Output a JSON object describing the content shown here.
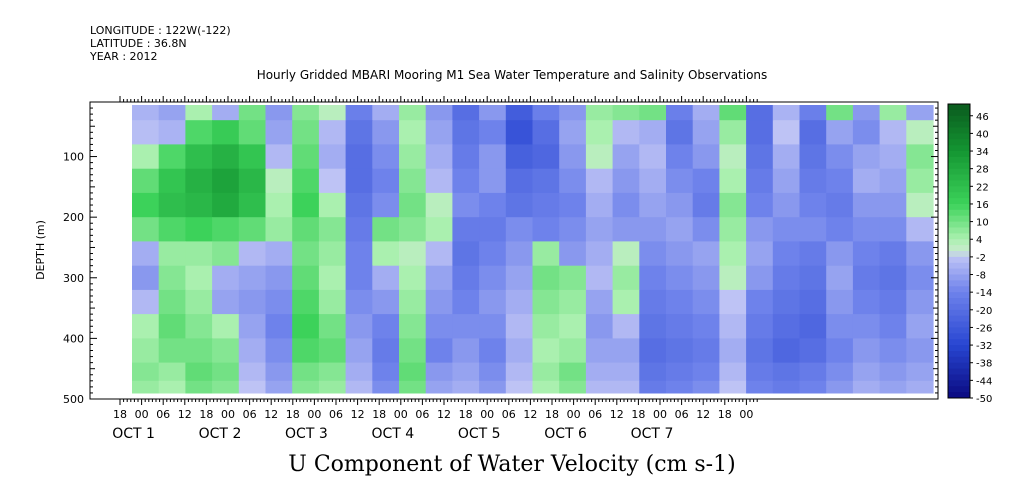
{
  "header": {
    "longitude": "LONGITUDE : 122W(-122)",
    "latitude": "LATITUDE : 36.8N",
    "year": "YEAR : 2012"
  },
  "chart_data": {
    "type": "heatmap",
    "title": "Hourly Gridded MBARI Mooring M1 Sea Water Temperature and Salinity Observations",
    "xlabel": "U Component of Water Velocity (cm s-1)",
    "ylabel": "DEPTH (m)",
    "ylim": [
      500,
      10
    ],
    "yticks": [
      100,
      200,
      300,
      400,
      500
    ],
    "x_hour_ticks": [
      "18",
      "00",
      "06",
      "12",
      "18",
      "00",
      "06",
      "12",
      "18",
      "00",
      "06",
      "12",
      "18",
      "00",
      "06",
      "12",
      "18",
      "00",
      "06",
      "12",
      "18",
      "00",
      "06",
      "12",
      "18",
      "00",
      "06",
      "12",
      "18",
      "00"
    ],
    "day_labels": [
      "OCT 1",
      "OCT 2",
      "OCT 3",
      "OCT 4",
      "OCT 5",
      "OCT 6",
      "OCT 7"
    ],
    "colorbar_ticks": [
      46,
      40,
      34,
      28,
      22,
      16,
      10,
      4,
      -2,
      -8,
      -14,
      -20,
      -26,
      -32,
      -38,
      -44,
      -50
    ],
    "colorbar_range": [
      -50,
      50
    ],
    "colors": {
      "strong_positive": "#0b6a1e",
      "positive": "#33cc55",
      "weak_positive": "#aef0b4",
      "weak_negative": "#b9bff5",
      "negative": "#6f82ea",
      "strong_negative": "#0a0a80"
    },
    "time_hours": [
      0,
      6,
      12,
      18,
      24,
      30,
      36,
      42,
      48,
      54,
      60,
      66,
      72,
      78,
      84,
      90,
      96,
      102,
      108,
      114,
      120,
      126,
      132,
      138,
      144,
      150,
      156,
      162,
      168,
      174
    ],
    "depths_m": [
      20,
      60,
      100,
      140,
      180,
      220,
      260,
      300,
      340,
      380,
      420,
      460,
      480
    ],
    "u_cm_s": [
      [
        -5,
        -8,
        4,
        -6,
        10,
        -10,
        8,
        2,
        -15,
        -6,
        6,
        -10,
        -20,
        -10,
        -25,
        -15,
        -10,
        6,
        8,
        10,
        -15,
        -6,
        12,
        -20,
        -5,
        -15,
        10,
        -10,
        6,
        -8
      ],
      [
        -3,
        -5,
        14,
        18,
        12,
        -8,
        10,
        -4,
        -18,
        -10,
        4,
        -8,
        -18,
        -14,
        -28,
        -20,
        -8,
        4,
        -4,
        -6,
        -18,
        -8,
        6,
        -20,
        -2,
        -20,
        -8,
        -12,
        -4,
        2
      ],
      [
        4,
        14,
        22,
        26,
        20,
        -4,
        12,
        -6,
        -20,
        -12,
        6,
        -6,
        -16,
        -10,
        -24,
        -22,
        -10,
        2,
        -8,
        -4,
        -14,
        -10,
        2,
        -18,
        -6,
        -18,
        -12,
        -8,
        -6,
        8
      ],
      [
        12,
        20,
        26,
        30,
        24,
        2,
        14,
        -2,
        -20,
        -14,
        8,
        -4,
        -14,
        -10,
        -20,
        -18,
        -12,
        -4,
        -10,
        -6,
        -12,
        -14,
        4,
        -16,
        -8,
        -16,
        -14,
        -6,
        -8,
        6
      ],
      [
        16,
        22,
        24,
        28,
        22,
        4,
        16,
        4,
        -18,
        -12,
        10,
        2,
        -12,
        -14,
        -18,
        -16,
        -14,
        -6,
        -12,
        -8,
        -10,
        -16,
        8,
        -14,
        -10,
        -14,
        -16,
        -10,
        -10,
        2
      ],
      [
        10,
        14,
        16,
        14,
        12,
        6,
        12,
        8,
        -16,
        10,
        8,
        4,
        -16,
        -16,
        -12,
        -14,
        -12,
        -8,
        -10,
        -10,
        -8,
        -12,
        6,
        -10,
        -12,
        -12,
        -14,
        -12,
        -12,
        -4
      ],
      [
        -6,
        6,
        6,
        8,
        -4,
        -6,
        10,
        6,
        -14,
        4,
        2,
        -4,
        -18,
        -14,
        -10,
        6,
        -10,
        -6,
        2,
        -12,
        -10,
        -8,
        4,
        -8,
        -14,
        -16,
        -10,
        -14,
        -16,
        -10
      ],
      [
        -10,
        8,
        4,
        -6,
        -8,
        -10,
        12,
        4,
        -14,
        -6,
        4,
        -8,
        -16,
        -12,
        -8,
        10,
        8,
        -4,
        6,
        -14,
        -12,
        -10,
        2,
        -10,
        -16,
        -18,
        -8,
        -16,
        -18,
        -12
      ],
      [
        -4,
        10,
        6,
        -8,
        -10,
        -12,
        14,
        6,
        -12,
        -10,
        6,
        -10,
        -14,
        -10,
        -6,
        8,
        6,
        -8,
        4,
        -16,
        -14,
        -12,
        -2,
        -14,
        -18,
        -20,
        -10,
        -14,
        -16,
        -10
      ],
      [
        4,
        12,
        8,
        4,
        -8,
        -14,
        16,
        10,
        -10,
        -14,
        8,
        -12,
        -12,
        -12,
        -4,
        6,
        4,
        -10,
        -4,
        -18,
        -16,
        -14,
        -4,
        -16,
        -20,
        -22,
        -12,
        -12,
        -14,
        -8
      ],
      [
        6,
        10,
        10,
        8,
        -6,
        -12,
        14,
        12,
        -8,
        -16,
        10,
        -14,
        -10,
        -14,
        -6,
        4,
        6,
        -8,
        -8,
        -20,
        -18,
        -16,
        -6,
        -18,
        -22,
        -20,
        -14,
        -10,
        -12,
        -10
      ],
      [
        8,
        6,
        12,
        10,
        -4,
        -10,
        10,
        8,
        -6,
        -14,
        12,
        -10,
        -8,
        -12,
        -4,
        6,
        10,
        -6,
        -6,
        -18,
        -16,
        -14,
        -4,
        -16,
        -18,
        -16,
        -12,
        -8,
        -10,
        -8
      ],
      [
        6,
        4,
        10,
        8,
        -2,
        -8,
        8,
        6,
        -4,
        -12,
        10,
        -8,
        -6,
        -10,
        -2,
        4,
        8,
        -4,
        -4,
        -16,
        -14,
        -12,
        -2,
        -14,
        -16,
        -14,
        -10,
        -6,
        -8,
        -6
      ]
    ]
  }
}
